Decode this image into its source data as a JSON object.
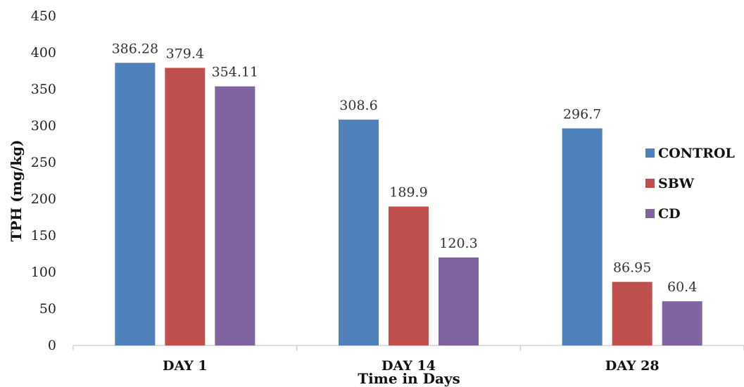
{
  "chart_data": {
    "type": "bar",
    "categories": [
      "DAY 1",
      "DAY 14",
      "DAY 28"
    ],
    "series": [
      {
        "name": "CONTROL",
        "values": [
          386.28,
          308.6,
          296.7
        ],
        "labels": [
          "386.28",
          "308.6",
          "296.7"
        ],
        "color": "#4F81BD"
      },
      {
        "name": "SBW",
        "values": [
          379.4,
          189.9,
          86.95
        ],
        "labels": [
          "379.4",
          "189.9",
          "86.95"
        ],
        "color": "#C0504D"
      },
      {
        "name": "CD",
        "values": [
          354.11,
          120.3,
          60.4
        ],
        "labels": [
          "354.11",
          "120.3",
          "60.4"
        ],
        "color": "#8064A2"
      }
    ],
    "xlabel": "Time in Days",
    "ylabel": "TPH (mg/kg)",
    "ylim": [
      0,
      450
    ],
    "yticks": [
      "0",
      "50",
      "100",
      "150",
      "200",
      "250",
      "300",
      "350",
      "400",
      "450"
    ],
    "grid": false,
    "legend": "right"
  }
}
